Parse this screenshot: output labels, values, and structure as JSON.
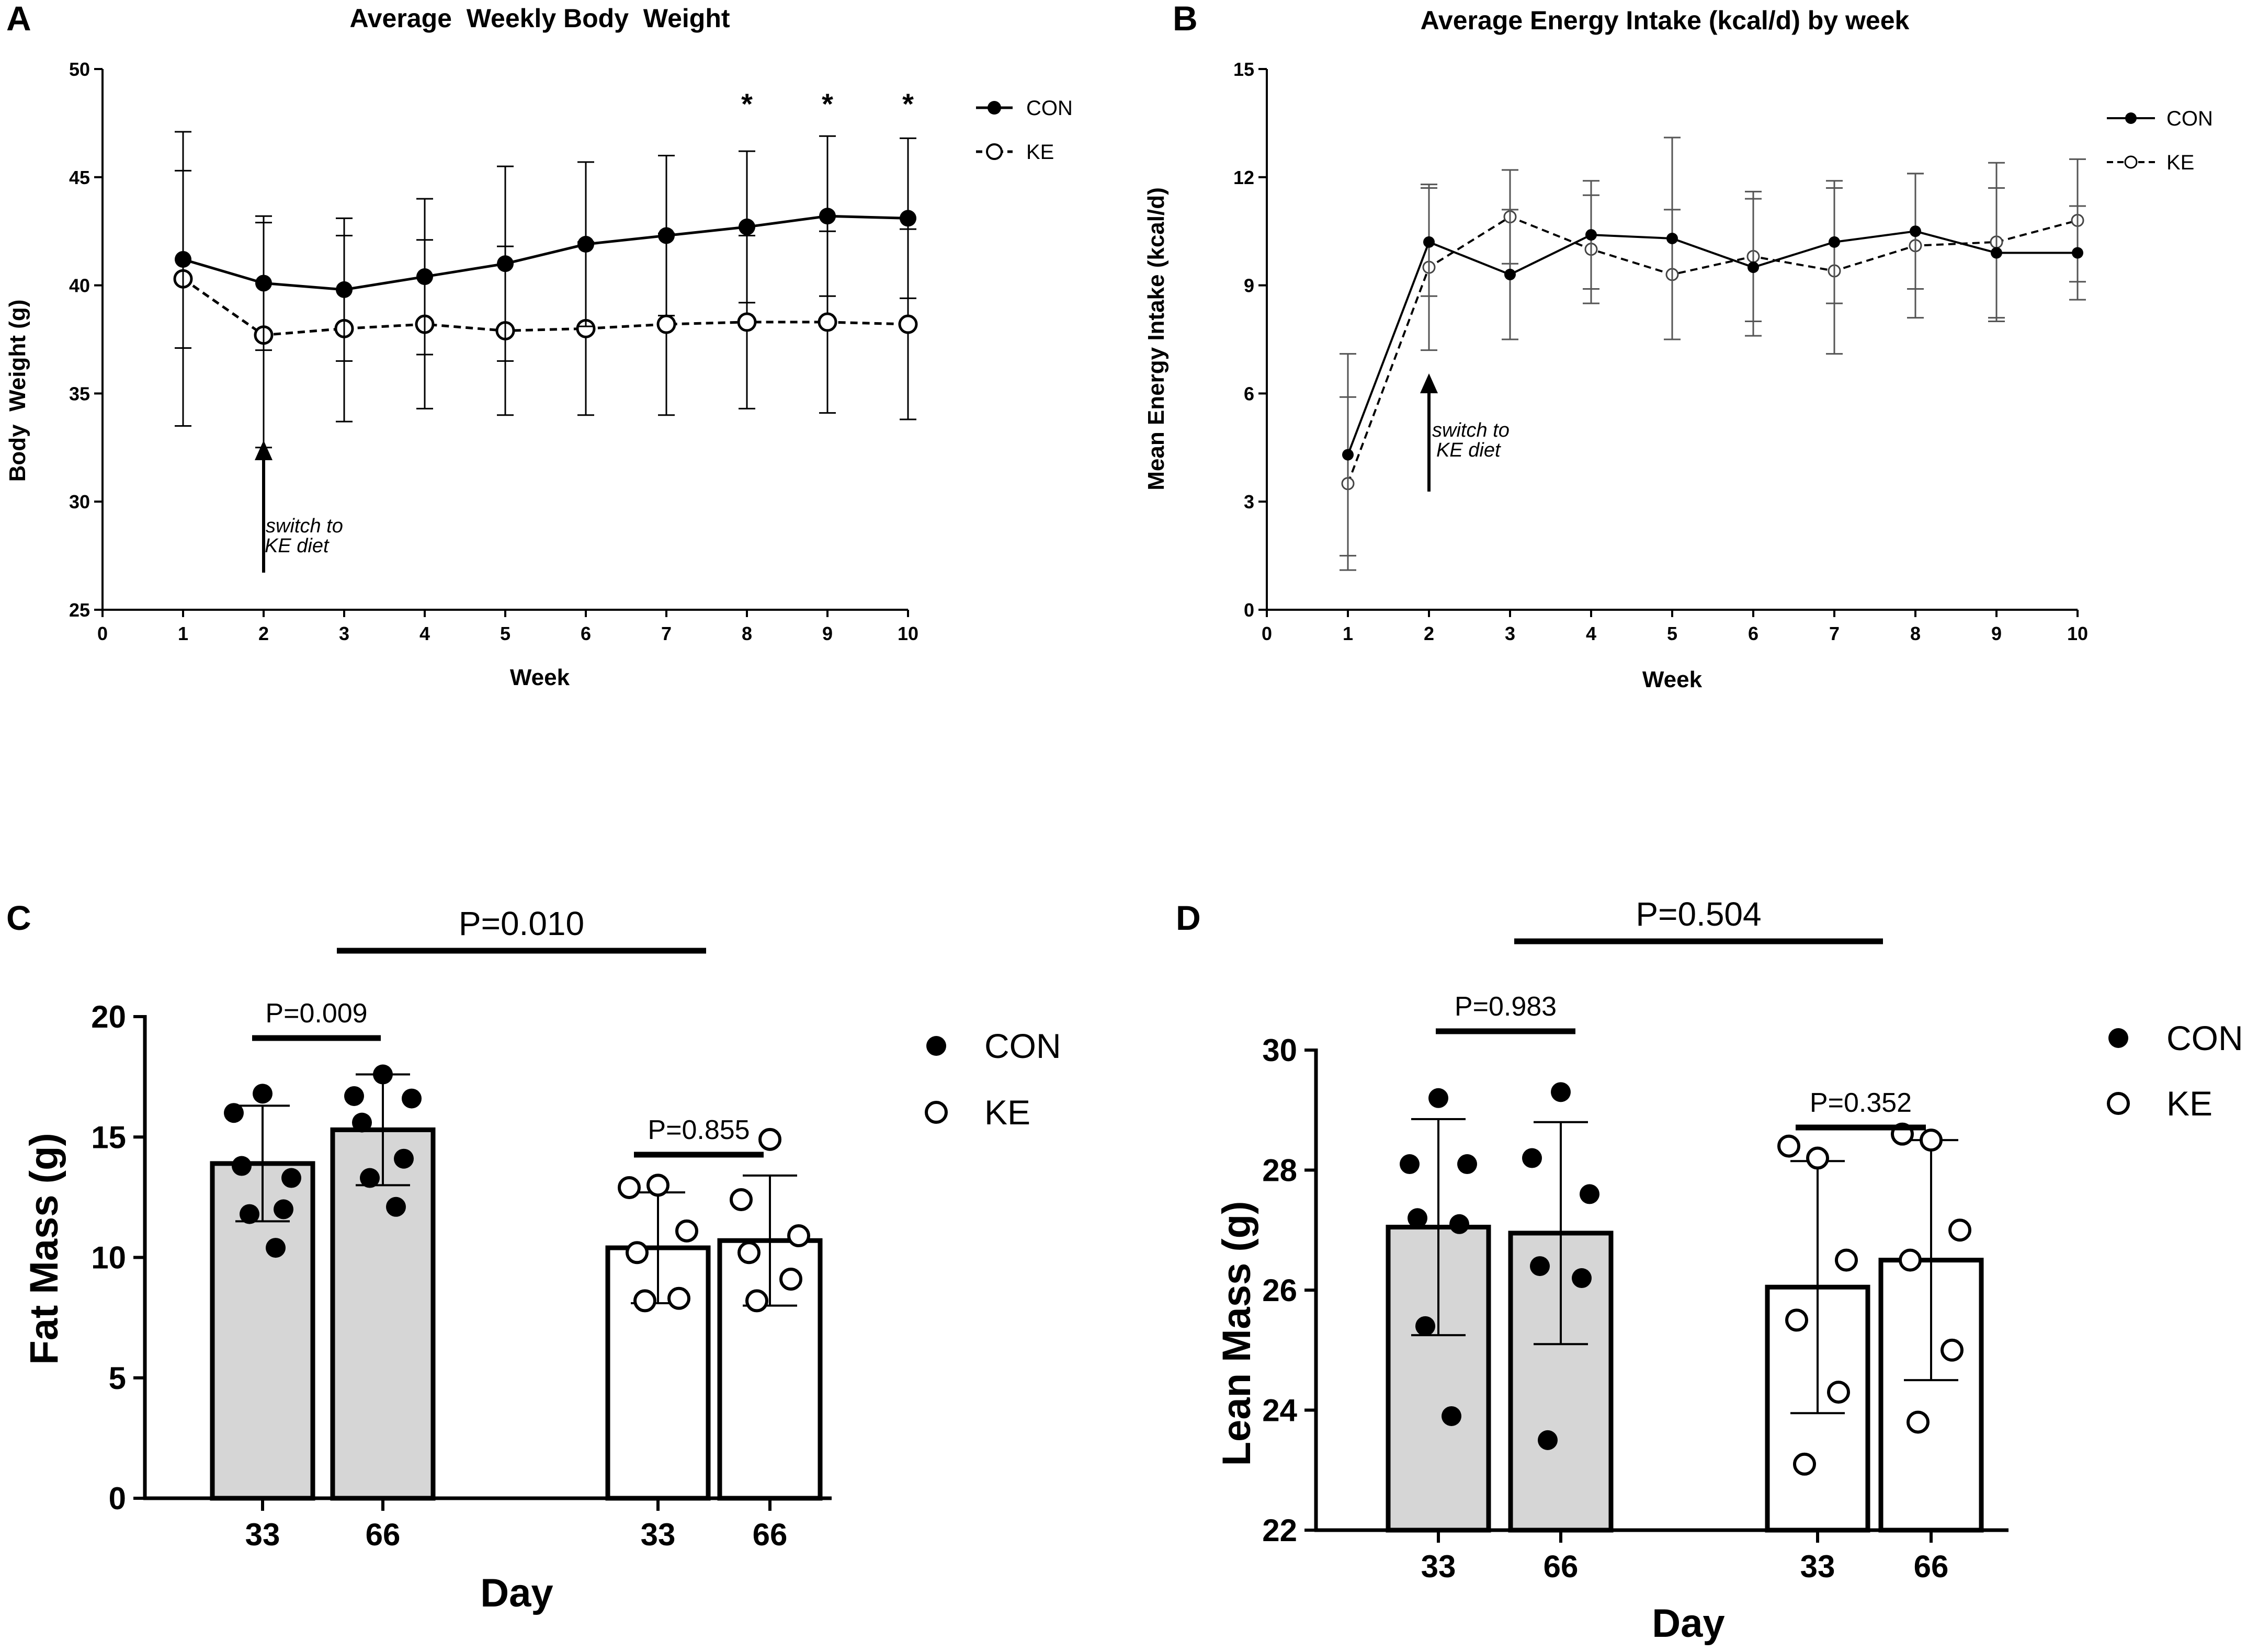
{
  "chart_data": [
    {
      "panel": "A",
      "type": "line",
      "title": "Average  Weekly Body  Weight",
      "xlabel": "Week",
      "ylabel": "Body  Weight (g)",
      "xlim": [
        0,
        10
      ],
      "ylim": [
        25,
        50
      ],
      "x_ticks": [
        "0",
        "1",
        "2",
        "3",
        "4",
        "5",
        "6",
        "7",
        "8",
        "9",
        "10"
      ],
      "y_ticks": [
        "25",
        "30",
        "35",
        "40",
        "45",
        "50"
      ],
      "legend": [
        "CON",
        "KE"
      ],
      "annotation": [
        "switch to",
        "KE diet"
      ],
      "annotation_x": 2,
      "significance_marker": "*",
      "significant_weeks": [
        8,
        9,
        10
      ],
      "series": [
        {
          "name": "CON",
          "x": [
            1,
            2,
            3,
            4,
            5,
            6,
            7,
            8,
            9,
            10
          ],
          "values": [
            41.2,
            40.1,
            39.8,
            40.4,
            41.0,
            41.9,
            42.3,
            42.7,
            43.2,
            43.1
          ],
          "error": [
            4.1,
            3.1,
            3.3,
            3.6,
            4.5,
            3.8,
            3.7,
            3.5,
            3.7,
            3.7
          ]
        },
        {
          "name": "KE",
          "x": [
            1,
            2,
            3,
            4,
            5,
            6,
            7,
            8,
            9,
            10
          ],
          "values": [
            40.3,
            37.7,
            38.0,
            38.2,
            37.9,
            38.0,
            38.2,
            38.3,
            38.3,
            38.2
          ],
          "error": [
            6.8,
            5.2,
            4.3,
            3.9,
            3.9,
            4.0,
            4.2,
            4.0,
            4.2,
            4.4
          ]
        }
      ]
    },
    {
      "panel": "B",
      "type": "line",
      "title": "Average Energy Intake (kcal/d) by week",
      "xlabel": "Week",
      "ylabel": "Mean Energy Intake (kcal/d)",
      "xlim": [
        0,
        10
      ],
      "ylim": [
        0,
        15
      ],
      "x_ticks": [
        "0",
        "1",
        "2",
        "3",
        "4",
        "5",
        "6",
        "7",
        "8",
        "9",
        "10"
      ],
      "y_ticks": [
        "0",
        "3",
        "6",
        "9",
        "12",
        "15"
      ],
      "legend": [
        "CON",
        "KE"
      ],
      "annotation": [
        "switch to",
        "KE diet"
      ],
      "annotation_x": 2,
      "series": [
        {
          "name": "CON",
          "x": [
            1,
            2,
            3,
            4,
            5,
            6,
            7,
            8,
            9,
            10
          ],
          "values": [
            4.3,
            10.2,
            9.3,
            10.4,
            10.3,
            9.5,
            10.2,
            10.5,
            9.9,
            9.9
          ],
          "error": [
            2.8,
            1.5,
            1.8,
            1.5,
            2.8,
            1.9,
            1.7,
            1.6,
            1.8,
            1.3
          ]
        },
        {
          "name": "KE",
          "x": [
            1,
            2,
            3,
            4,
            5,
            6,
            7,
            8,
            9,
            10
          ],
          "values": [
            3.5,
            9.5,
            10.9,
            10.0,
            9.3,
            9.8,
            9.4,
            10.1,
            10.2,
            10.8
          ],
          "error": [
            2.4,
            2.3,
            1.3,
            1.5,
            1.8,
            1.8,
            2.3,
            2.0,
            2.2,
            1.7
          ]
        }
      ]
    },
    {
      "panel": "C",
      "type": "bar",
      "xlabel": "Day",
      "ylabel": "Fat Mass (g)",
      "ylim": [
        0,
        20
      ],
      "y_ticks": [
        "0",
        "5",
        "10",
        "15",
        "20"
      ],
      "categories": [
        "33",
        "66",
        "33",
        "66"
      ],
      "groups": [
        "CON",
        "CON",
        "KE",
        "KE"
      ],
      "legend": [
        "CON",
        "KE"
      ],
      "values": [
        13.9,
        15.3,
        10.4,
        10.7
      ],
      "errors": [
        2.4,
        2.3,
        2.3,
        2.7
      ],
      "points": [
        [
          16.8,
          16.0,
          13.3,
          13.8,
          12.0,
          11.8,
          10.4
        ],
        [
          17.6,
          16.7,
          16.6,
          15.6,
          14.1,
          13.3,
          12.1
        ],
        [
          13.0,
          12.9,
          11.1,
          10.2,
          8.3,
          8.2
        ],
        [
          14.9,
          12.4,
          10.9,
          10.2,
          9.1,
          8.2
        ]
      ],
      "pvalues": {
        "overall": "P=0.010",
        "con": "P=0.009",
        "ke": "P=0.855"
      }
    },
    {
      "panel": "D",
      "type": "bar",
      "xlabel": "Day",
      "ylabel": "Lean Mass (g)",
      "ylim": [
        22,
        30
      ],
      "y_ticks": [
        "22",
        "24",
        "26",
        "28",
        "30"
      ],
      "categories": [
        "33",
        "66",
        "33",
        "66"
      ],
      "groups": [
        "CON",
        "CON",
        "KE",
        "KE"
      ],
      "legend": [
        "CON",
        "KE"
      ],
      "values": [
        27.05,
        26.95,
        26.05,
        26.5
      ],
      "errors": [
        1.8,
        1.85,
        2.1,
        2.0
      ],
      "points": [
        [
          29.2,
          28.1,
          28.1,
          27.2,
          27.1,
          25.4,
          23.9
        ],
        [
          29.3,
          28.2,
          27.6,
          26.4,
          26.2,
          23.5
        ],
        [
          28.2,
          28.4,
          26.5,
          25.5,
          24.3,
          23.1
        ],
        [
          28.5,
          28.6,
          27.0,
          26.5,
          25.0,
          23.8
        ]
      ],
      "pvalues": {
        "overall": "P=0.504",
        "con": "P=0.983",
        "ke": "P=0.352"
      }
    }
  ]
}
